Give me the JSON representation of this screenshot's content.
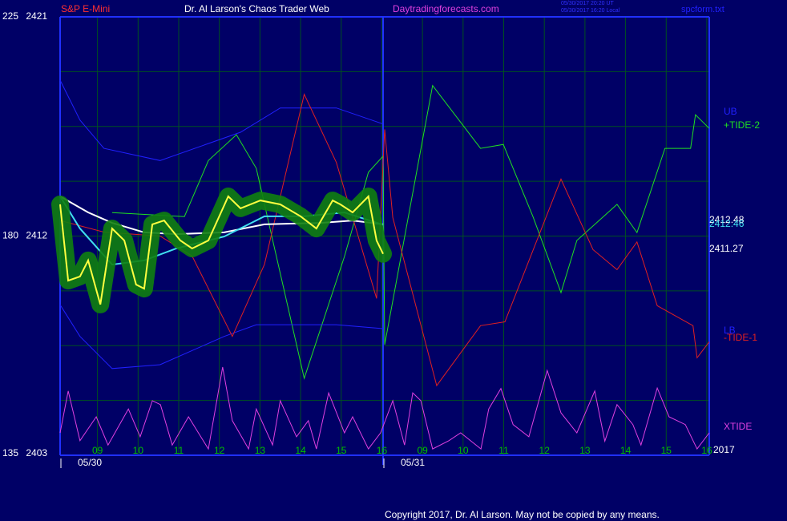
{
  "header": {
    "symbol": "S&P E-Mini",
    "title": "Dr. Al Larson's Chaos Trader Web",
    "site": "Daytradingforecasts.com",
    "timestamp_ut": "05/30/2017 20:20 UT",
    "timestamp_local": "05/30/2017 16:20 Local",
    "file": "spcform.txt"
  },
  "chart_data": {
    "type": "line",
    "xlim": [
      0.08,
      16.06
    ],
    "xticks": [
      {
        "value": 1,
        "label": "09"
      },
      {
        "value": 2,
        "label": "10"
      },
      {
        "value": 3,
        "label": "11"
      },
      {
        "value": 4,
        "label": "12"
      },
      {
        "value": 5,
        "label": "13"
      },
      {
        "value": 6,
        "label": "14"
      },
      {
        "value": 7,
        "label": "15"
      },
      {
        "value": 8,
        "label": "16"
      },
      {
        "value": 9,
        "label": "09"
      },
      {
        "value": 10,
        "label": "10"
      },
      {
        "value": 11,
        "label": "11"
      },
      {
        "value": 12,
        "label": "12"
      },
      {
        "value": 13,
        "label": "13"
      },
      {
        "value": 14,
        "label": "14"
      },
      {
        "value": 15,
        "label": "15"
      },
      {
        "value": 16,
        "label": "16"
      }
    ],
    "day_labels": [
      "05/30",
      "05/31"
    ],
    "year_label": "2017",
    "ylim": [
      135,
      225
    ],
    "yticks": [
      {
        "value": 135,
        "label": "135 2403"
      },
      {
        "value": 180,
        "label": "180 2412"
      },
      {
        "value": 225,
        "label": "225 2421"
      }
    ],
    "minor_yticks": [
      146.25,
      157.5,
      168.75,
      191.25,
      202.5,
      213.75
    ],
    "y2lim": [
      2403,
      2421
    ],
    "grid": true,
    "series": [
      {
        "name": "UB",
        "color": "#2020ff",
        "x": [
          0.08,
          0.57,
          1.16,
          2.54,
          4.52,
          5.5,
          6.88,
          8.03
        ],
        "values": [
          212.0,
          203.8,
          198.0,
          195.5,
          201.3,
          206.3,
          206.3,
          203.0
        ]
      },
      {
        "name": "+TIDE-2",
        "color": "#20e020",
        "x": [
          1.36,
          3.14,
          3.73,
          4.42,
          4.91,
          6.09,
          7.08,
          7.67,
          8.03,
          8.07,
          9.25,
          10.43,
          10.99,
          11.72,
          12.41,
          12.8,
          13.79,
          14.28,
          14.97,
          15.6,
          15.72,
          16.06
        ],
        "values": [
          184.8,
          184.0,
          195.5,
          200.8,
          193.9,
          150.8,
          175.8,
          193.1,
          196.4,
          157.7,
          210.9,
          198.0,
          198.8,
          184.0,
          168.4,
          179.1,
          186.5,
          180.7,
          198.0,
          198.0,
          204.9,
          202.1
        ]
      },
      {
        "name": "LB",
        "color": "#2020ff",
        "x": [
          0.08,
          0.57,
          1.36,
          2.54,
          4.12,
          4.91,
          6.88,
          8.03
        ],
        "values": [
          165.9,
          159.4,
          152.8,
          153.6,
          159.4,
          161.8,
          161.8,
          161.0
        ]
      },
      {
        "name": "-TIDE-1",
        "color": "#e02020",
        "x": [
          0.08,
          1.16,
          2.54,
          3.33,
          4.32,
          5.11,
          6.09,
          6.88,
          7.87,
          8.07,
          8.27,
          9.35,
          10.43,
          11.03,
          12.41,
          13.2,
          13.79,
          14.28,
          14.78,
          15.66,
          15.76,
          16.06
        ],
        "values": [
          183.2,
          180.8,
          180.0,
          175.9,
          159.4,
          174.2,
          209.1,
          195.1,
          167.2,
          201.9,
          183.8,
          149.3,
          161.6,
          162.4,
          191.7,
          177.2,
          173.1,
          178.8,
          165.7,
          161.6,
          155.0,
          158.3
        ]
      },
      {
        "name": "XTIDE",
        "color": "#e040e0",
        "x": [
          0.08,
          0.28,
          0.57,
          0.97,
          1.26,
          1.76,
          2.05,
          2.35,
          2.55,
          2.84,
          3.24,
          3.73,
          4.08,
          4.32,
          4.72,
          4.91,
          5.31,
          5.5,
          5.9,
          6.19,
          6.39,
          6.69,
          7.08,
          7.28,
          7.67,
          7.97,
          8.27,
          8.56,
          8.76,
          8.96,
          9.25,
          9.65,
          9.94,
          10.44,
          10.63,
          10.93,
          11.23,
          11.62,
          12.07,
          12.41,
          12.8,
          13.24,
          13.49,
          13.79,
          14.18,
          14.38,
          14.78,
          15.07,
          15.47,
          15.76,
          16.06
        ],
        "values": [
          139.6,
          148.2,
          138.0,
          142.9,
          137.1,
          144.5,
          138.8,
          146.2,
          145.4,
          137.1,
          142.9,
          136.3,
          153.1,
          142.1,
          136.3,
          144.5,
          137.1,
          146.2,
          138.8,
          142.1,
          136.3,
          147.8,
          139.6,
          142.9,
          136.3,
          139.6,
          146.2,
          137.1,
          147.8,
          146.2,
          136.3,
          138.0,
          139.6,
          136.3,
          144.5,
          148.7,
          141.3,
          138.8,
          152.4,
          143.7,
          139.6,
          148.2,
          137.9,
          145.4,
          141.3,
          137.1,
          148.8,
          142.9,
          141.3,
          136.3,
          139.6
        ]
      },
      {
        "color": "#ffffff",
        "axis": "y2",
        "x": [
          0.08,
          0.77,
          1.36,
          2.15,
          2.94,
          4.12,
          5.11,
          6.49,
          7.28,
          8.03
        ],
        "values": [
          2413.63,
          2412.97,
          2412.54,
          2412.15,
          2412.08,
          2412.15,
          2412.48,
          2412.54,
          2412.64,
          2412.48
        ]
      },
      {
        "color": "#40e0f0",
        "axis": "y2",
        "x": [
          0.08,
          0.57,
          1.36,
          2.15,
          2.94,
          4.12,
          5.11,
          6.09,
          7.08,
          8.03
        ],
        "values": [
          2413.63,
          2412.31,
          2410.83,
          2411.0,
          2411.49,
          2411.98,
          2412.81,
          2412.81,
          2412.97,
          2412.46
        ]
      },
      {
        "color": "#ffff40",
        "axis": "y2",
        "x": [
          0.08,
          0.28,
          0.57,
          0.77,
          1.07,
          1.36,
          1.66,
          1.95,
          2.15,
          2.35,
          2.64,
          3.04,
          3.33,
          3.73,
          4.22,
          4.52,
          5.01,
          5.5,
          6.0,
          6.39,
          6.79,
          6.98,
          7.28,
          7.67,
          7.87,
          8.03
        ],
        "values": [
          2413.3,
          2410.17,
          2410.34,
          2411.0,
          2409.19,
          2412.31,
          2411.82,
          2410.01,
          2409.84,
          2412.48,
          2412.64,
          2411.82,
          2411.49,
          2411.82,
          2413.63,
          2413.14,
          2413.46,
          2413.3,
          2412.81,
          2412.31,
          2413.46,
          2413.3,
          2412.97,
          2413.63,
          2411.82,
          2411.27
        ]
      }
    ]
  },
  "footer": {
    "copyright": "Copyright 2017, Dr. Al Larson. May not be copied by any means."
  }
}
